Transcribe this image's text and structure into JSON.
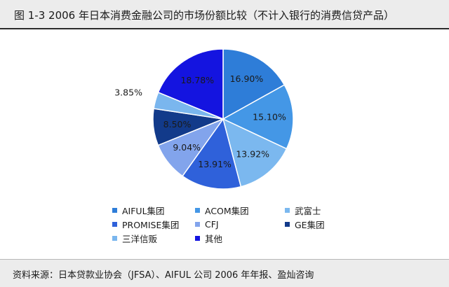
{
  "title": "图 1-3    2006 年日本消费金融公司的市场份额比较（不计入银行的消费信贷产品）",
  "source": "资料来源：日本贷款业协会（JFSA）、AIFUL 公司 2006 年年报、盈灿咨询",
  "chart_data": {
    "type": "pie",
    "title": "图 1-3    2006 年日本消费金融公司的市场份额比较（不计入银行的消费信贷产品）",
    "slices": [
      {
        "name": "AIFUL集团",
        "value": 16.9,
        "label": "16.90%",
        "color": "#2e7dd8"
      },
      {
        "name": "ACOM集团",
        "value": 15.1,
        "label": "15.10%",
        "color": "#4497e6"
      },
      {
        "name": "武富士",
        "value": 13.92,
        "label": "13.92%",
        "color": "#7bb8ef"
      },
      {
        "name": "PROMISE集团",
        "value": 13.91,
        "label": "13.91%",
        "color": "#2f61da"
      },
      {
        "name": "CFJ",
        "value": 9.04,
        "label": "9.04%",
        "color": "#82a4ec"
      },
      {
        "name": "GE集团",
        "value": 8.5,
        "label": "8.50%",
        "color": "#123a8a"
      },
      {
        "name": "三洋信贩",
        "value": 3.85,
        "label": "3.85%",
        "color": "#7ab6ee"
      },
      {
        "name": "其他",
        "value": 18.78,
        "label": "18.78%",
        "color": "#1414e0"
      }
    ],
    "legend_placement": "bottom"
  }
}
